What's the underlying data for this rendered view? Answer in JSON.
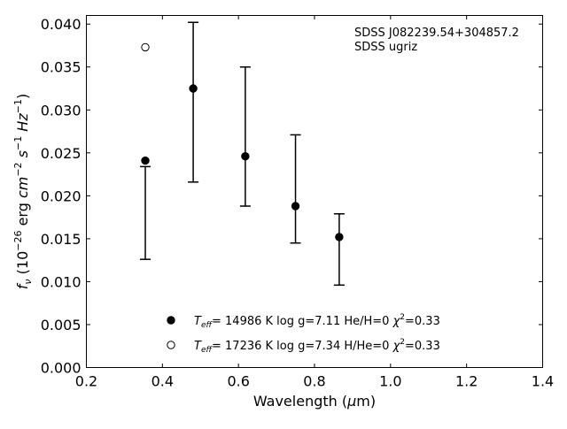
{
  "chart_data": {
    "type": "scatter",
    "title": "",
    "xlabel": "Wavelength (μm)",
    "ylabel": "f_ν (10^-26 erg cm^-2 s^-1 Hz^-1)",
    "xlim": [
      0.2,
      1.4
    ],
    "ylim": [
      0.0,
      0.041
    ],
    "x_ticks": [
      0.2,
      0.4,
      0.6,
      0.8,
      1.0,
      1.2,
      1.4
    ],
    "x_tick_labels": [
      "0.2",
      "0.4",
      "0.6",
      "0.8",
      "1.0",
      "1.2",
      "1.4"
    ],
    "y_ticks": [
      0.0,
      0.005,
      0.01,
      0.015,
      0.02,
      0.025,
      0.03,
      0.035,
      0.04
    ],
    "y_tick_labels": [
      "0.000",
      "0.005",
      "0.010",
      "0.015",
      "0.020",
      "0.025",
      "0.030",
      "0.035",
      "0.040"
    ],
    "grid": false,
    "annotation": {
      "lines": [
        "SDSS J082239.54+304857.2",
        "SDSS ugriz"
      ],
      "placement": "top-right"
    },
    "observed": {
      "name": "SDSS ugriz",
      "color": "#000000",
      "x": [
        0.355,
        0.481,
        0.618,
        0.75,
        0.865
      ],
      "lower": [
        0.0126,
        0.0216,
        0.0188,
        0.0145,
        0.0096
      ],
      "upper": [
        0.0234,
        0.0402,
        0.035,
        0.0271,
        0.0179
      ]
    },
    "series": [
      {
        "name": "T_eff= 14986 K  log g=7.11  He/H=0  χ²=0.33",
        "marker": "filled-circle",
        "color": "#000000",
        "x": [
          0.355,
          0.481,
          0.618,
          0.75,
          0.865
        ],
        "y": [
          0.0241,
          0.0325,
          0.0246,
          0.0188,
          0.0152
        ]
      },
      {
        "name": "T_eff= 17236 K  log g=7.34  H/He=0  χ²=0.33",
        "marker": "open-circle",
        "color": "#000000",
        "x": [
          0.355
        ],
        "y": [
          0.0373
        ]
      }
    ],
    "legend": {
      "placement": "bottom-center",
      "entries": [
        {
          "marker": "filled-circle",
          "teff": "14986 K",
          "logg": "log g=7.11",
          "comp": "He/H=0",
          "chi2": "=0.33"
        },
        {
          "marker": "open-circle",
          "teff": "17236 K",
          "logg": "log g=7.34",
          "comp": "H/He=0",
          "chi2": "=0.33"
        }
      ]
    }
  }
}
